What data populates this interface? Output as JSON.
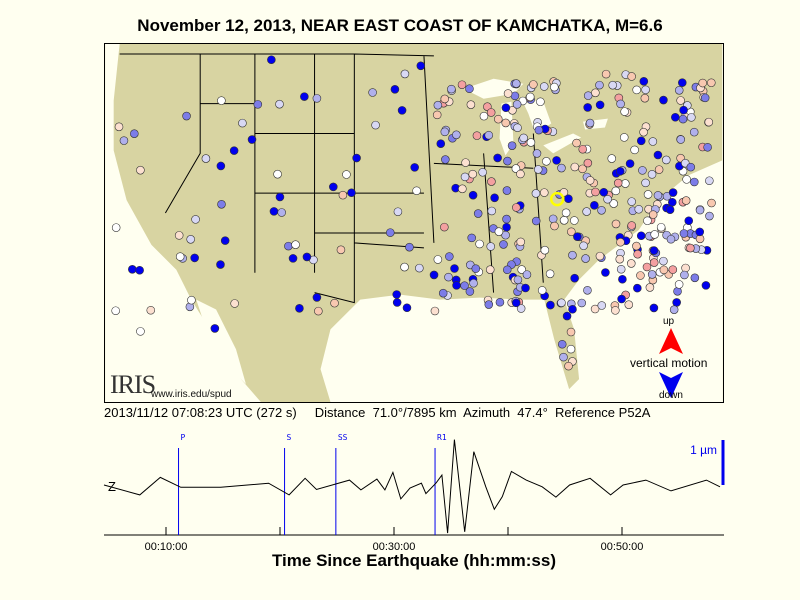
{
  "title": "November 12, 2013, NEAR EAST COAST OF KAMCHATKA, M=6.6",
  "info": {
    "time": "2013/11/12 07:08:23 UTC (272 s)",
    "distance_label": "Distance",
    "distance": "71.0°/7895 km",
    "azimuth_label": "Azimuth",
    "azimuth": "47.4°",
    "reference_label": "Reference",
    "reference": "P52A"
  },
  "logo": {
    "text": "IRIS",
    "url": "www.iris.edu/spud"
  },
  "legend": {
    "up": "up",
    "label": "vertical motion",
    "down": "down",
    "up_color": "#ff0000",
    "down_color": "#0000ff"
  },
  "colors": {
    "land": "#d8d4a2",
    "water": "#fffff0",
    "reference_marker": "#ffff00",
    "station_palette": [
      "#ff0000",
      "#f4a0a0",
      "#f8c8b0",
      "#fce0d0",
      "#ffffff",
      "#d8d8f4",
      "#b0b0ec",
      "#7c7ce8",
      "#0000ee"
    ]
  },
  "seismogram": {
    "component": "Z",
    "scale_label": "1 µm",
    "x_axis_label": "Time Since Earthquake (hh:mm:ss)",
    "x_ticks": [
      "00:10:00",
      "00:30:00",
      "00:50:00"
    ],
    "x_range_minutes": [
      4.5,
      58.9
    ],
    "phases": [
      {
        "name": "P",
        "t": 11.1
      },
      {
        "name": "S",
        "t": 20.4
      },
      {
        "name": "SS",
        "t": 24.9
      },
      {
        "name": "R1",
        "t": 33.6
      }
    ],
    "trace_um": [
      [
        4.56,
        0
      ],
      [
        7.7,
        -0.22
      ],
      [
        9.5,
        0.17
      ],
      [
        11.3,
        -0.05
      ],
      [
        14.8,
        -0.05
      ],
      [
        19.0,
        0.04
      ],
      [
        20.8,
        -0.22
      ],
      [
        22.2,
        0.15
      ],
      [
        23.2,
        -0.1
      ],
      [
        26.1,
        0.11
      ],
      [
        27.1,
        -0.11
      ],
      [
        28.5,
        0.13
      ],
      [
        29.2,
        -0.11
      ],
      [
        29.9,
        0.28
      ],
      [
        30.6,
        -0.31
      ],
      [
        31.4,
        -0.07
      ],
      [
        32.4,
        0.04
      ],
      [
        32.8,
        -0.19
      ],
      [
        33.7,
        0.05
      ],
      [
        34.2,
        0.22
      ],
      [
        34.7,
        -1.07
      ],
      [
        35.3,
        1.01
      ],
      [
        36.2,
        -1.04
      ],
      [
        37.0,
        0.74
      ],
      [
        38.05,
        -0.04
      ],
      [
        38.8,
        -0.54
      ],
      [
        39.5,
        -0.26
      ],
      [
        40.3,
        0.3
      ],
      [
        41.6,
        0.11
      ],
      [
        43.0,
        -0.04
      ],
      [
        44.2,
        -0.27
      ],
      [
        45.4,
        0
      ],
      [
        47.2,
        0.15
      ],
      [
        49.0,
        -0.22
      ],
      [
        50.1,
        0
      ],
      [
        52.1,
        0.11
      ],
      [
        54.3,
        -0.13
      ],
      [
        57.4,
        0.11
      ],
      [
        58.6,
        -0.04
      ]
    ]
  }
}
